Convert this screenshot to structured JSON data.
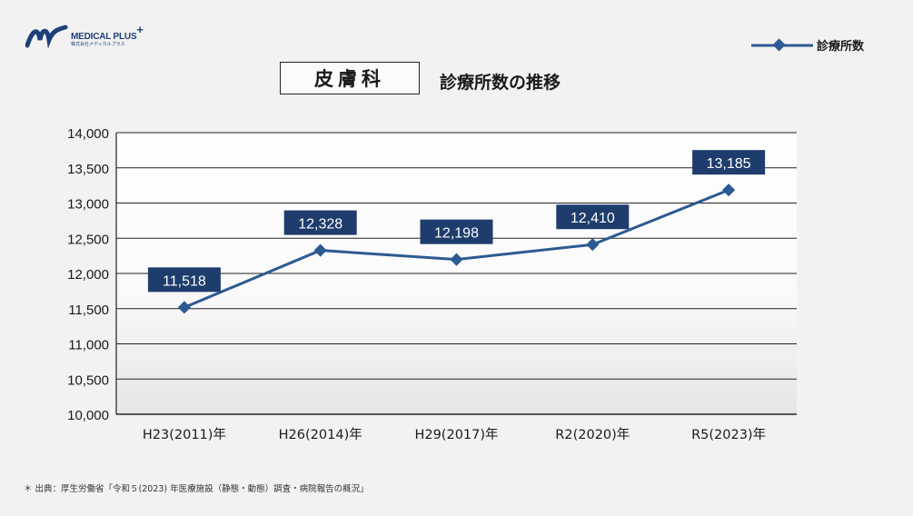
{
  "logo": {
    "name": "MEDICAL PLUS",
    "sub": "株式会社メディカルプラス",
    "plus": "+"
  },
  "title": {
    "main": "皮膚科",
    "sub": "診療所数の推移"
  },
  "legend": {
    "label": "診療所数"
  },
  "colors": {
    "line": "#2c5a92",
    "label_bg": "#1e3d6c",
    "label_text": "#ffffff",
    "grid": "#222222"
  },
  "chart_data": {
    "type": "line",
    "categories": [
      "H23(2011)年",
      "H26(2014)年",
      "H29(2017)年",
      "R2(2020)年",
      "R5(2023)年"
    ],
    "series": [
      {
        "name": "診療所数",
        "values": [
          11518,
          12328,
          12198,
          12410,
          13185
        ]
      }
    ],
    "value_labels": [
      "11,518",
      "12,328",
      "12,198",
      "12,410",
      "13,185"
    ],
    "ylim": [
      10000,
      14000
    ],
    "yticks": [
      "10,000",
      "10,500",
      "11,000",
      "11,500",
      "12,000",
      "12,500",
      "13,000",
      "13,500",
      "14,000"
    ],
    "grid": true,
    "legend_position": "top-right"
  },
  "footnote": "＊ 出典：厚生労働省「令和５(2023) 年医療施設（静態・動態）調査・病院報告の概況」"
}
